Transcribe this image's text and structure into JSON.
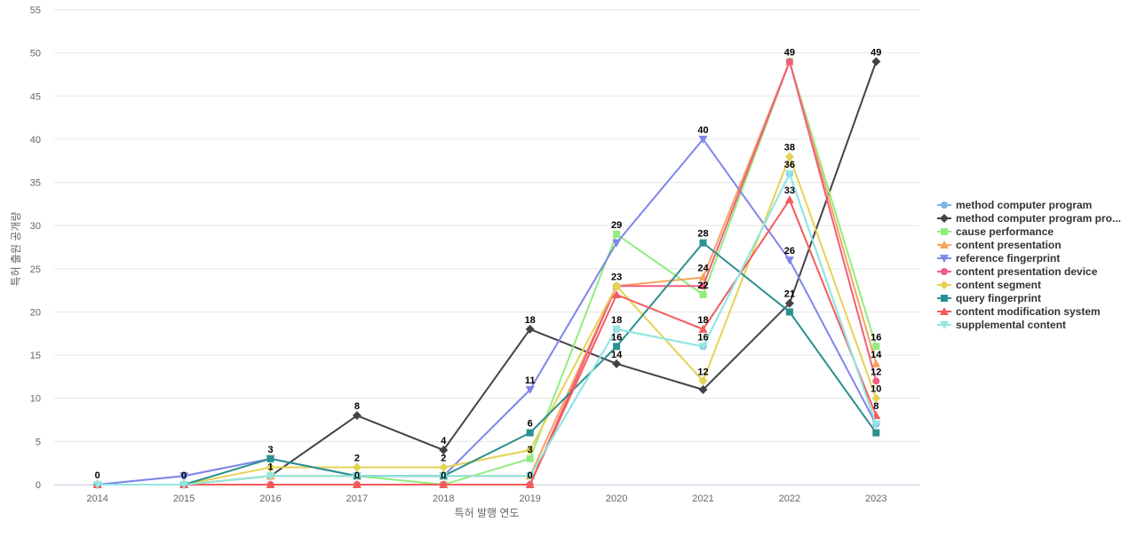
{
  "chart_data": {
    "type": "line",
    "title": "",
    "xlabel": "특허 발행 연도",
    "ylabel": "특허 출원 공개량",
    "ylim": [
      0,
      55
    ],
    "yticks": [
      0,
      5,
      10,
      15,
      20,
      25,
      30,
      35,
      40,
      45,
      50,
      55
    ],
    "grid": true,
    "legend_position": "right",
    "categories": [
      "2014",
      "2015",
      "2016",
      "2017",
      "2018",
      "2019",
      "2020",
      "2021",
      "2022",
      "2023"
    ],
    "series": [
      {
        "name": "method computer program",
        "color": "#7cb5ec",
        "marker": "circle",
        "values": [
          0,
          1,
          3,
          1,
          1,
          1,
          18,
          16,
          36,
          7
        ],
        "labels": [
          false,
          false,
          false,
          false,
          false,
          false,
          false,
          false,
          false,
          false
        ]
      },
      {
        "name": "method computer program pro...",
        "color": "#434348",
        "marker": "diamond",
        "values": [
          0,
          0,
          1,
          8,
          4,
          18,
          14,
          11,
          21,
          49
        ],
        "labels": [
          false,
          false,
          false,
          true,
          true,
          true,
          true,
          false,
          true,
          true
        ]
      },
      {
        "name": "cause performance",
        "color": "#90ed7d",
        "marker": "square",
        "values": [
          0,
          0,
          1,
          1,
          0,
          3,
          29,
          22,
          49,
          16
        ],
        "labels": [
          false,
          false,
          false,
          false,
          false,
          true,
          true,
          true,
          false,
          true
        ]
      },
      {
        "name": "content presentation",
        "color": "#f7a35c",
        "marker": "triangle",
        "values": [
          0,
          0,
          1,
          1,
          1,
          1,
          23,
          24,
          49,
          14
        ],
        "labels": [
          false,
          false,
          false,
          false,
          false,
          false,
          false,
          true,
          false,
          true
        ]
      },
      {
        "name": "reference fingerprint",
        "color": "#8085e9",
        "marker": "triangle-down",
        "values": [
          0,
          1,
          3,
          1,
          1,
          11,
          28,
          40,
          26,
          7
        ],
        "labels": [
          false,
          false,
          false,
          false,
          false,
          true,
          false,
          true,
          true,
          false
        ]
      },
      {
        "name": "content presentation device",
        "color": "#f15c80",
        "marker": "circle",
        "values": [
          0,
          0,
          0,
          0,
          0,
          0,
          23,
          23,
          49,
          12
        ],
        "labels": [
          false,
          false,
          false,
          false,
          false,
          false,
          false,
          false,
          true,
          true
        ]
      },
      {
        "name": "content segment",
        "color": "#e4d354",
        "marker": "diamond",
        "values": [
          0,
          0,
          2,
          2,
          2,
          4,
          23,
          12,
          38,
          10
        ],
        "labels": [
          false,
          false,
          false,
          true,
          true,
          false,
          true,
          true,
          true,
          true
        ]
      },
      {
        "name": "query fingerprint",
        "color": "#2b908f",
        "marker": "square",
        "values": [
          0,
          0,
          3,
          1,
          1,
          6,
          16,
          28,
          20,
          6
        ],
        "labels": [
          false,
          false,
          true,
          false,
          false,
          true,
          true,
          true,
          false,
          false
        ]
      },
      {
        "name": "content modification system",
        "color": "#f45b5b",
        "marker": "triangle",
        "values": [
          0,
          0,
          0,
          0,
          0,
          0,
          22,
          18,
          33,
          8
        ],
        "labels": [
          true,
          true,
          false,
          true,
          true,
          true,
          false,
          true,
          true,
          true
        ]
      },
      {
        "name": "supplemental content",
        "color": "#91e8e1",
        "marker": "triangle-down",
        "values": [
          0,
          0,
          1,
          1,
          1,
          1,
          18,
          16,
          36,
          7
        ],
        "labels": [
          false,
          false,
          true,
          false,
          false,
          false,
          true,
          true,
          true,
          false
        ]
      }
    ]
  }
}
